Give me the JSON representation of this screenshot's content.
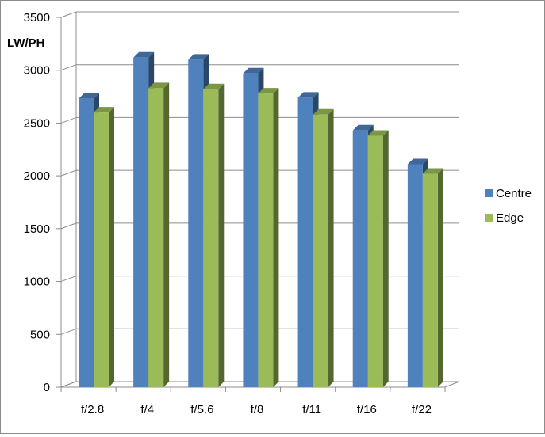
{
  "chart_data": {
    "type": "bar",
    "title": "",
    "xlabel": "",
    "ylabel": "LW/PH",
    "ylim": [
      0,
      3500
    ],
    "yticks": [
      0,
      500,
      1000,
      1500,
      2000,
      2500,
      3000,
      3500
    ],
    "categories": [
      "f/2.8",
      "f/4",
      "f/5.6",
      "f/8",
      "f/11",
      "f/16",
      "f/22"
    ],
    "series": [
      {
        "name": "Centre",
        "color": "#4f81bd",
        "values": [
          2730,
          3120,
          3100,
          2970,
          2740,
          2430,
          2110
        ]
      },
      {
        "name": "Edge",
        "color": "#9bbb59",
        "values": [
          2600,
          2830,
          2820,
          2780,
          2580,
          2380,
          2020
        ]
      }
    ],
    "grid": true,
    "legend": "right",
    "style": "3d-clustered-column"
  }
}
